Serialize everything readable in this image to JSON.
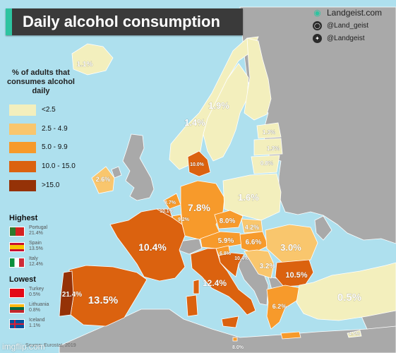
{
  "title": "Daily alcohol consumption",
  "credits": [
    {
      "icon": "globe-icon",
      "text": "Landgeist.com"
    },
    {
      "icon": "instagram-icon",
      "text": "@Land_geist"
    },
    {
      "icon": "twitter-icon",
      "text": "@Landgeist"
    }
  ],
  "legend": {
    "title": "% of adults that consumes alcohol daily",
    "items": [
      {
        "label": "<2.5",
        "color": "#f3efbd"
      },
      {
        "label": "2.5 - 4.9",
        "color": "#f9c66d"
      },
      {
        "label": "5.0 - 9.9",
        "color": "#f79a2b"
      },
      {
        "label": "10.0 - 15.0",
        "color": "#db620f"
      },
      {
        "label": ">15.0",
        "color": "#953207"
      }
    ]
  },
  "highest": {
    "title": "Highest",
    "items": [
      {
        "name": "Portugal",
        "value": "21.4%",
        "flag": "portugal-flag-icon"
      },
      {
        "name": "Spain",
        "value": "13.5%",
        "flag": "spain-flag-icon"
      },
      {
        "name": "Italy",
        "value": "12.4%",
        "flag": "italy-flag-icon"
      }
    ]
  },
  "lowest": {
    "title": "Lowest",
    "items": [
      {
        "name": "Turkey",
        "value": "0.5%",
        "flag": "turkey-flag-icon"
      },
      {
        "name": "Lithuania",
        "value": "0.8%",
        "flag": "lithuania-flag-icon"
      },
      {
        "name": "Iceland",
        "value": "1.1%",
        "flag": "iceland-flag-icon"
      }
    ]
  },
  "source": "Source: Eurostat, 2019",
  "watermark": "imgflip.com",
  "map_values": {
    "iceland": "1.1%",
    "norway": "1.4%",
    "sweden": "1.9%",
    "finland": "",
    "estonia": "1.3%",
    "latvia": "1.3%",
    "lithuania": "0.8%",
    "ireland": "2.6%",
    "denmark": "10.0%",
    "netherlands": "8.7%",
    "belgium": "10.1%",
    "luxembourg": "9.2%",
    "germany": "7.8%",
    "poland": "1.6%",
    "czechia": "8.0%",
    "slovakia": "4.2%",
    "austria": "5.9%",
    "hungary": "6.6%",
    "slovenia": "6.8%",
    "croatia": "10.4%",
    "romania": "3.0%",
    "serbia": "3.2%",
    "bulgaria": "10.5%",
    "greece": "6.2%",
    "turkey": "0.5%",
    "cyprus": "4.0%",
    "france": "10.4%",
    "spain": "13.5%",
    "portugal": "21.4%",
    "italy": "12.4%",
    "malta": "8.0%"
  }
}
